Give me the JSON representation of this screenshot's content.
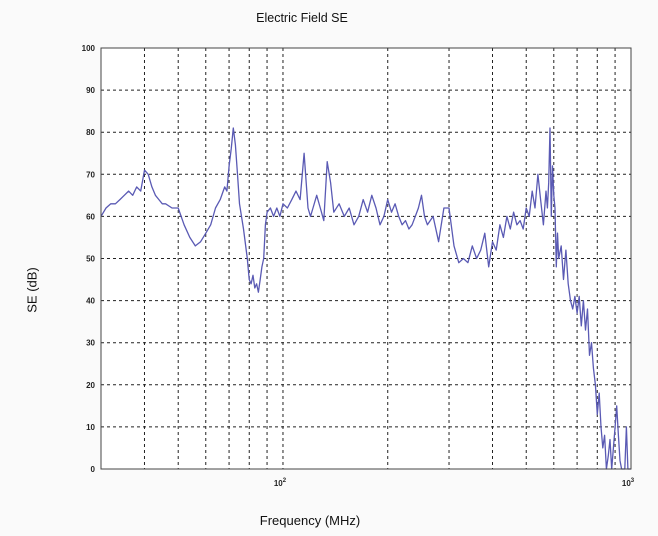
{
  "chart_data": {
    "type": "line",
    "title": "Electric Field SE",
    "xlabel": "Frequency (MHz)",
    "ylabel": "SE (dB)",
    "x_scale": "log",
    "xlim": [
      30,
      1000
    ],
    "ylim": [
      0,
      100
    ],
    "y_ticks": [
      0,
      10,
      20,
      30,
      40,
      50,
      60,
      70,
      80,
      90,
      100
    ],
    "x_ticks": [
      {
        "value": 100,
        "base": "10",
        "exp": "2"
      },
      {
        "value": 1000,
        "base": "10",
        "exp": "3"
      }
    ],
    "x_minor_ticks": [
      40,
      50,
      60,
      70,
      80,
      90,
      200,
      300,
      400,
      500,
      600,
      700,
      800,
      900
    ],
    "grid": true,
    "series": [
      {
        "color": "#5a5ab4",
        "x": [
          30,
          31,
          32,
          33,
          34,
          35,
          36,
          37,
          38,
          39,
          40,
          41,
          42,
          43,
          44,
          45,
          46,
          48,
          50,
          52,
          54,
          56,
          58,
          60,
          62,
          64,
          66,
          68,
          69,
          70,
          71,
          72,
          73,
          74,
          75,
          77,
          79,
          80,
          81,
          82,
          83,
          84,
          85,
          86,
          87,
          88,
          89,
          90,
          92,
          94,
          96,
          98,
          100,
          103,
          106,
          109,
          112,
          115,
          118,
          120,
          122,
          125,
          128,
          131,
          134,
          137,
          140,
          145,
          150,
          155,
          160,
          165,
          170,
          175,
          180,
          185,
          190,
          195,
          200,
          205,
          210,
          215,
          220,
          225,
          230,
          235,
          240,
          245,
          250,
          255,
          260,
          270,
          280,
          290,
          300,
          310,
          320,
          330,
          340,
          350,
          360,
          370,
          380,
          390,
          400,
          410,
          420,
          430,
          440,
          450,
          460,
          470,
          480,
          490,
          500,
          510,
          520,
          530,
          540,
          550,
          560,
          570,
          575,
          580,
          585,
          590,
          595,
          600,
          605,
          610,
          615,
          620,
          630,
          640,
          650,
          660,
          670,
          680,
          690,
          700,
          710,
          720,
          730,
          740,
          750,
          760,
          770,
          780,
          790,
          800,
          810,
          820,
          830,
          840,
          850,
          860,
          870,
          880,
          890,
          900,
          910,
          920,
          930,
          940,
          950,
          960,
          970,
          980,
          990,
          1000
        ],
        "y": [
          60,
          62,
          63,
          63,
          64,
          65,
          66,
          65,
          67,
          66,
          71,
          70,
          67,
          65,
          64,
          63,
          63,
          62,
          62,
          58,
          55,
          53,
          54,
          56,
          58,
          62,
          64,
          67,
          66,
          72,
          76,
          81,
          77,
          70,
          63,
          57,
          50,
          45,
          44,
          46,
          43,
          44,
          42,
          45,
          48,
          50,
          58,
          61,
          62,
          60,
          62,
          60,
          63,
          62,
          64,
          66,
          64,
          75,
          62,
          60,
          62,
          65,
          62,
          59,
          73,
          68,
          61,
          63,
          60,
          62,
          58,
          60,
          64,
          61,
          65,
          62,
          58,
          60,
          64,
          61,
          63,
          60,
          58,
          59,
          57,
          58,
          60,
          62,
          65,
          60,
          58,
          60,
          54,
          62,
          62,
          53,
          49,
          50,
          49,
          53,
          50,
          52,
          56,
          48,
          54,
          52,
          58,
          55,
          60,
          57,
          61,
          58,
          59,
          57,
          62,
          60,
          66,
          62,
          70,
          64,
          58,
          66,
          62,
          68,
          81,
          60,
          72,
          65,
          62,
          48,
          56,
          50,
          53,
          45,
          52,
          44,
          40,
          38,
          41,
          37,
          41,
          34,
          40,
          33,
          38,
          27,
          30,
          24,
          20,
          13,
          18,
          10,
          5,
          8,
          0,
          3,
          7,
          0,
          5,
          10,
          15,
          8,
          2,
          0,
          0,
          0,
          10,
          0,
          0,
          0
        ]
      }
    ]
  }
}
